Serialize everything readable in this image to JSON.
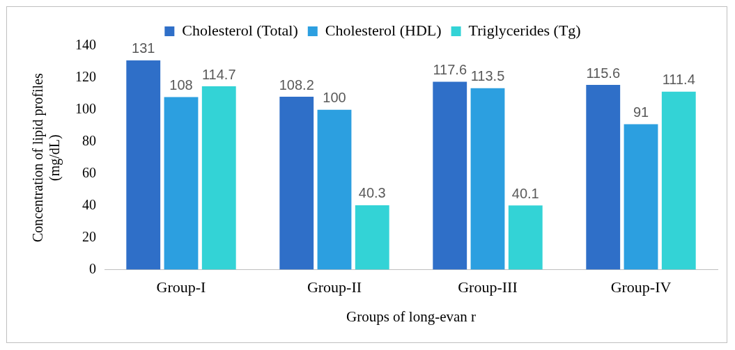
{
  "chart_data": {
    "type": "bar",
    "xlabel": "Groups of long-evan r",
    "ylabel": "Concentration of lipid  profiles (mg/dL)",
    "categories": [
      "Group-I",
      "Group-II",
      "Group-III",
      "Group-IV"
    ],
    "series": [
      {
        "name": "Cholesterol (Total)",
        "color": "#2f6fc8",
        "values": [
          131,
          108.2,
          117.6,
          115.6
        ]
      },
      {
        "name": "Cholesterol (HDL)",
        "color": "#2c9fe0",
        "values": [
          108,
          100,
          113.5,
          91
        ]
      },
      {
        "name": "Triglycerides (Tg)",
        "color": "#33d3d6",
        "values": [
          114.7,
          40.3,
          40.1,
          111.4
        ]
      }
    ],
    "ylim": [
      0,
      140
    ],
    "yticks": [
      0,
      20,
      40,
      60,
      80,
      100,
      120,
      140
    ],
    "grid": false,
    "legend": "top",
    "data_labels": true
  }
}
